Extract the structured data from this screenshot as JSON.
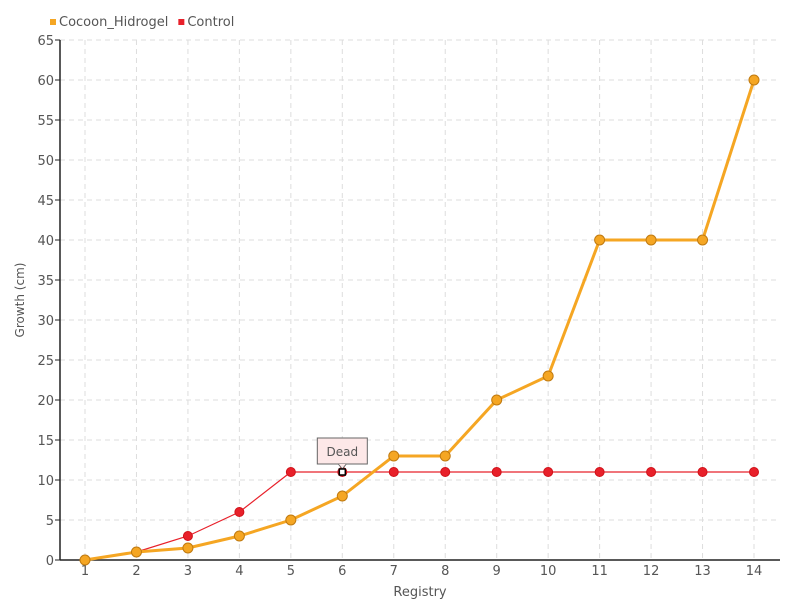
{
  "chart_data": {
    "type": "line",
    "title": "",
    "xlabel": "Registry",
    "ylabel": "Growth (cm)",
    "x": [
      1,
      2,
      3,
      4,
      5,
      6,
      7,
      8,
      9,
      10,
      11,
      12,
      13,
      14
    ],
    "ylim": [
      0,
      65
    ],
    "yticks": [
      0,
      5,
      10,
      15,
      20,
      25,
      30,
      35,
      40,
      45,
      50,
      55,
      60,
      65
    ],
    "grid": true,
    "legend_position": "top-left",
    "series": [
      {
        "name": "Cocoon_Hidrogel",
        "color": "#f5a623",
        "values": [
          0,
          1,
          1.5,
          3,
          5,
          8,
          13,
          13,
          20,
          23,
          40,
          40,
          40,
          60
        ]
      },
      {
        "name": "Control",
        "color": "#e8202a",
        "values": [
          0,
          1,
          3,
          6,
          11,
          11,
          11,
          11,
          11,
          11,
          11,
          11,
          11,
          11
        ]
      }
    ],
    "annotations": [
      {
        "series": "Control",
        "x": 6,
        "y": 11,
        "text": "Dead"
      }
    ]
  }
}
